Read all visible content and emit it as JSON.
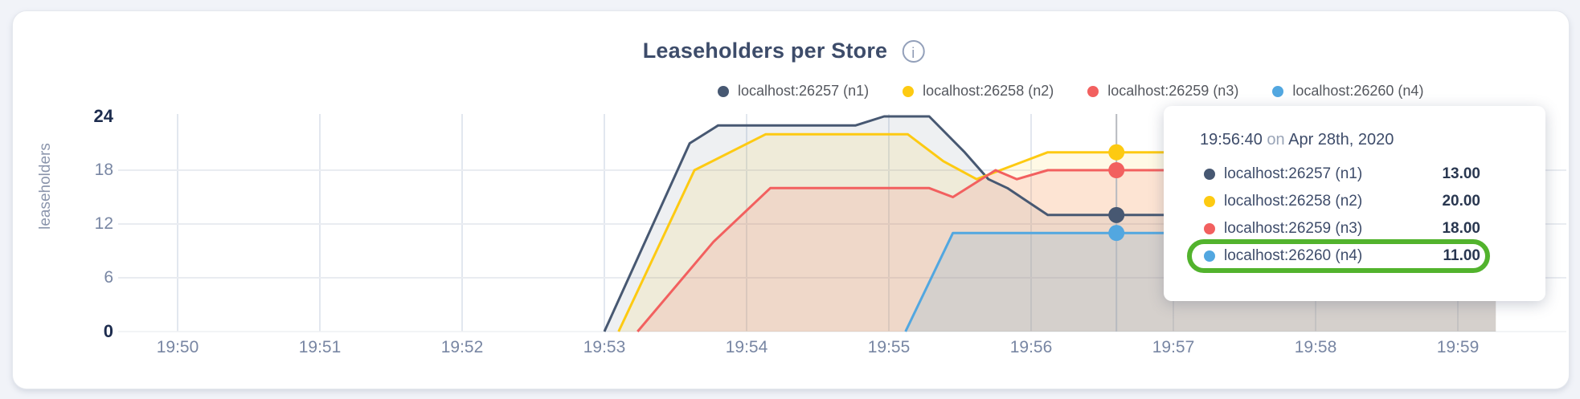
{
  "chart": {
    "title": "Leaseholders per Store",
    "info_icon_glyph": "i",
    "y_axis_title": "leaseholders"
  },
  "tooltip": {
    "time": "19:56:40",
    "connector": "on",
    "date": "Apr 28th, 2020",
    "rows": [
      {
        "label": "localhost:26257 (n1)",
        "value": "13.00",
        "color": "#475872",
        "highlighted": false
      },
      {
        "label": "localhost:26258 (n2)",
        "value": "20.00",
        "color": "#fdca12",
        "highlighted": false
      },
      {
        "label": "localhost:26259 (n3)",
        "value": "18.00",
        "color": "#f2605f",
        "highlighted": false
      },
      {
        "label": "localhost:26260 (n4)",
        "value": "11.00",
        "color": "#52a7e0",
        "highlighted": true
      }
    ],
    "highlight_color": "#52b32d"
  },
  "chart_data": {
    "type": "area",
    "title": "Leaseholders per Store",
    "ylabel": "leaseholders",
    "ylim": [
      0,
      24
    ],
    "grid": true,
    "legend_position": "top",
    "x_tick_labels": [
      "19:50",
      "19:51",
      "19:52",
      "19:53",
      "19:54",
      "19:55",
      "19:56",
      "19:57",
      "19:58",
      "19:59"
    ],
    "x_unit": "seconds since 19:50:00",
    "y_ticks": [
      {
        "v": 24,
        "label": "24",
        "bold": true
      },
      {
        "v": 18,
        "label": "18",
        "bold": false
      },
      {
        "v": 12,
        "label": "12",
        "bold": false
      },
      {
        "v": 6,
        "label": "6",
        "bold": false
      },
      {
        "v": 0,
        "label": "0",
        "bold": true
      }
    ],
    "series": [
      {
        "name": "localhost:26257 (n1)",
        "color": "#475872",
        "fill_opacity": 0.09,
        "points": [
          [
            180,
            0
          ],
          [
            216,
            21
          ],
          [
            228,
            23
          ],
          [
            286,
            23
          ],
          [
            298,
            24
          ],
          [
            317,
            24
          ],
          [
            332,
            20
          ],
          [
            342,
            17
          ],
          [
            350,
            16
          ],
          [
            367,
            13
          ],
          [
            556,
            13
          ]
        ]
      },
      {
        "name": "localhost:26258 (n2)",
        "color": "#fdca12",
        "fill_opacity": 0.11,
        "points": [
          [
            186,
            0
          ],
          [
            218,
            18
          ],
          [
            248,
            22
          ],
          [
            308,
            22
          ],
          [
            323,
            19
          ],
          [
            337,
            17
          ],
          [
            367,
            20
          ],
          [
            556,
            20
          ]
        ]
      },
      {
        "name": "localhost:26259 (n3)",
        "color": "#f2605f",
        "fill_opacity": 0.13,
        "points": [
          [
            194,
            0
          ],
          [
            226,
            10
          ],
          [
            250,
            16
          ],
          [
            317,
            16
          ],
          [
            327,
            15
          ],
          [
            345,
            18
          ],
          [
            354,
            17
          ],
          [
            367,
            18
          ],
          [
            556,
            18
          ]
        ]
      },
      {
        "name": "localhost:26260 (n4)",
        "color": "#52a7e0",
        "fill_opacity": 0.16,
        "points": [
          [
            307,
            0
          ],
          [
            327,
            11
          ],
          [
            556,
            11
          ]
        ]
      }
    ],
    "hover": {
      "time_label": "19:56:40",
      "x_sec": 396,
      "values": [
        13,
        20,
        18,
        11
      ]
    }
  }
}
